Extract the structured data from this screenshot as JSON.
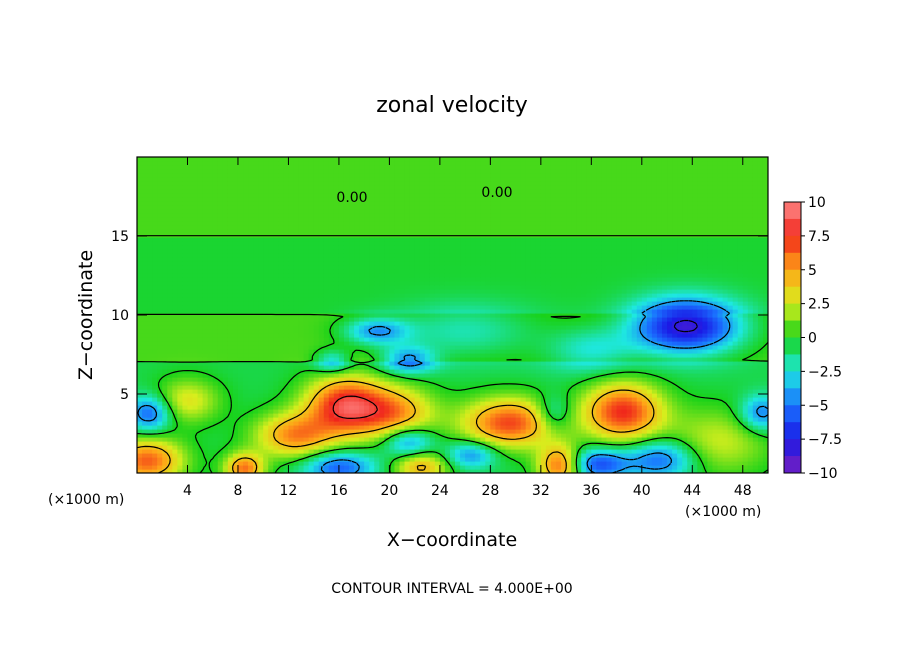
{
  "chart_data": {
    "type": "heatmap",
    "title": "zonal velocity",
    "xlabel": "X−coordinate",
    "ylabel": "Z−coordinate",
    "x_unit_left": "(×1000 m)",
    "x_unit_right": "(×1000 m)",
    "xlim": [
      0,
      50
    ],
    "ylim": [
      0,
      20
    ],
    "x_ticks": [
      4,
      8,
      12,
      16,
      20,
      24,
      28,
      32,
      36,
      40,
      44,
      48
    ],
    "y_ticks": [
      5,
      10,
      15
    ],
    "colorbar": {
      "vmin": -10,
      "vmax": 10,
      "ticks": [
        10,
        7.5,
        5,
        2.5,
        0,
        -2.5,
        -5,
        -7.5,
        -10
      ],
      "tick_labels": [
        "10",
        "7.5",
        "5",
        "2.5",
        "0",
        "−2.5",
        "−5",
        "−7.5",
        "−10"
      ]
    },
    "contour_labels": [
      "0.00",
      "0.00"
    ],
    "contour_interval_text": "CONTOUR INTERVAL = 4.000E+00",
    "features": [
      {
        "x": 16.5,
        "z": 4.3,
        "value": 8.5,
        "sx": 2.2,
        "sz": 1.3
      },
      {
        "x": 12.5,
        "z": 2.4,
        "value": 6.0,
        "sx": 2.2,
        "sz": 1.0
      },
      {
        "x": 20.5,
        "z": 3.8,
        "value": 5.5,
        "sx": 2.2,
        "sz": 1.2
      },
      {
        "x": 29.5,
        "z": 3.2,
        "value": 7.5,
        "sx": 2.6,
        "sz": 1.1
      },
      {
        "x": 38.5,
        "z": 3.9,
        "value": 8.0,
        "sx": 2.2,
        "sz": 1.3
      },
      {
        "x": 33.5,
        "z": 0.5,
        "value": 7.0,
        "sx": 1.2,
        "sz": 0.9
      },
      {
        "x": 8.5,
        "z": 0.3,
        "value": 6.5,
        "sx": 1.1,
        "sz": 0.7
      },
      {
        "x": 22.5,
        "z": 0.4,
        "value": 5.0,
        "sx": 1.5,
        "sz": 0.7
      },
      {
        "x": 0.8,
        "z": 0.8,
        "value": 7.0,
        "sx": 2.0,
        "sz": 1.0
      },
      {
        "x": 4.0,
        "z": 4.6,
        "value": 3.5,
        "sx": 1.8,
        "sz": 1.0
      },
      {
        "x": 46.0,
        "z": 2.0,
        "value": 3.0,
        "sx": 3.0,
        "sz": 1.5
      },
      {
        "x": 43.5,
        "z": 9.3,
        "value": -9.0,
        "sx": 3.0,
        "sz": 1.2
      },
      {
        "x": 36.5,
        "z": 0.6,
        "value": -5.5,
        "sx": 1.7,
        "sz": 0.7
      },
      {
        "x": 41.5,
        "z": 0.9,
        "value": -5.0,
        "sx": 2.0,
        "sz": 0.9
      },
      {
        "x": 16.0,
        "z": 0.4,
        "value": -5.0,
        "sx": 2.0,
        "sz": 0.7
      },
      {
        "x": 21.5,
        "z": 2.0,
        "value": -4.5,
        "sx": 1.4,
        "sz": 0.7
      },
      {
        "x": 26.5,
        "z": 1.2,
        "value": -4.0,
        "sx": 1.4,
        "sz": 0.6
      },
      {
        "x": 19.0,
        "z": 9.0,
        "value": -4.5,
        "sx": 1.8,
        "sz": 0.6
      },
      {
        "x": 21.5,
        "z": 7.2,
        "value": -4.5,
        "sx": 1.5,
        "sz": 0.6
      },
      {
        "x": 15.5,
        "z": 7.1,
        "value": -3.5,
        "sx": 1.0,
        "sz": 0.5
      },
      {
        "x": 1.0,
        "z": 3.8,
        "value": -5.0,
        "sx": 1.2,
        "sz": 0.8
      },
      {
        "x": 49.5,
        "z": 3.8,
        "value": -4.5,
        "sx": 1.2,
        "sz": 0.8
      },
      {
        "x": 36.0,
        "z": 7.8,
        "value": -2.8,
        "sx": 2.5,
        "sz": 1.0
      },
      {
        "x": 26.0,
        "z": 9.0,
        "value": -2.5,
        "sx": 4.0,
        "sz": 1.2
      },
      {
        "x": 33.0,
        "z": 3.8,
        "value": -3.0,
        "sx": 1.0,
        "sz": 0.8
      }
    ]
  }
}
